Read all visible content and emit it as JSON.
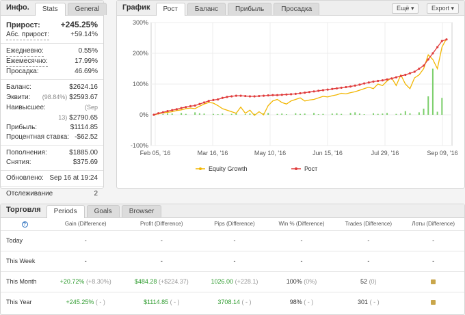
{
  "info": {
    "title": "Инфо.",
    "tabs": [
      "Stats",
      "General"
    ],
    "gain_label": "Прирост:",
    "gain_value": "+245.25%",
    "abs_gain_label": "Абс. прирост:",
    "abs_gain_value": "+59.14%",
    "daily_label": "Ежедневно:",
    "daily_value": "0.55%",
    "monthly_label": "Ежемесячно:",
    "monthly_value": "17.99%",
    "drawdown_label": "Просадка:",
    "drawdown_value": "46.69%",
    "balance_label": "Баланс:",
    "balance_value": "$2624.16",
    "equity_label": "Эквити:",
    "equity_note": "(98.84%)",
    "equity_value": "$2593.67",
    "highest_label": "Наивысшее:",
    "highest_note": "(Sep 13)",
    "highest_value": "$2790.65",
    "profit_label": "Прибыль:",
    "profit_value": "$1114.85",
    "interest_label": "Процентная ставка:",
    "interest_value": "-$62.52",
    "deposits_label": "Пополнения:",
    "deposits_value": "$1885.00",
    "withdrawals_label": "Снятия:",
    "withdrawals_value": "$375.69",
    "updated_label": "Обновлено:",
    "updated_value": "Sep 16 at 19:24",
    "tracking_label": "Отслеживание",
    "tracking_value": "2"
  },
  "chart_panel": {
    "title": "График",
    "tabs": [
      "Рост",
      "Баланс",
      "Прибыль",
      "Просадка"
    ],
    "more_button": "Ещё",
    "export_button": "Export"
  },
  "chart_data": {
    "type": "line",
    "x_ticks": [
      "Feb 05, '16",
      "Mar 16, '16",
      "May 10, '16",
      "Jun 15, '16",
      "Jul 29, '16",
      "Sep 09, '16"
    ],
    "y_ticks": [
      "300%",
      "200%",
      "100%",
      "0%",
      "-100%"
    ],
    "ylim": [
      -100,
      300
    ],
    "legend": [
      "Equity Growth",
      "Рост"
    ],
    "series": [
      {
        "name": "Рост",
        "color": "#e03c3c",
        "values": [
          0,
          5,
          8,
          12,
          15,
          18,
          22,
          25,
          28,
          30,
          35,
          40,
          45,
          48,
          50,
          55,
          58,
          60,
          62,
          62,
          61,
          60,
          60,
          61,
          62,
          63,
          64,
          64,
          65,
          66,
          67,
          68,
          70,
          72,
          74,
          76,
          78,
          80,
          82,
          84,
          86,
          88,
          90,
          92,
          95,
          98,
          102,
          105,
          108,
          110,
          112,
          115,
          118,
          122,
          126,
          130,
          135,
          140,
          150,
          160,
          180,
          200,
          220,
          240,
          245
        ]
      },
      {
        "name": "Equity Growth",
        "color": "#f2b600",
        "values": [
          0,
          3,
          6,
          8,
          10,
          14,
          16,
          20,
          22,
          20,
          28,
          35,
          40,
          38,
          30,
          20,
          15,
          10,
          5,
          25,
          5,
          15,
          -2,
          10,
          0,
          30,
          45,
          50,
          40,
          35,
          45,
          50,
          55,
          45,
          48,
          50,
          55,
          60,
          58,
          62,
          65,
          70,
          68,
          72,
          75,
          80,
          85,
          90,
          85,
          100,
          95,
          110,
          120,
          95,
          130,
          100,
          85,
          120,
          130,
          150,
          195,
          180,
          150,
          220,
          248
        ]
      }
    ],
    "bars": [
      3,
      0,
      2,
      5,
      4,
      0,
      6,
      3,
      0,
      8,
      5,
      4,
      0,
      3,
      2,
      4,
      0,
      3,
      5,
      0,
      2,
      4,
      3,
      0,
      5,
      6,
      0,
      3,
      4,
      2,
      0,
      5,
      3,
      4,
      0,
      6,
      2,
      3,
      0,
      4,
      5,
      3,
      0,
      6,
      8,
      4,
      2,
      0,
      5,
      3,
      4,
      6,
      0,
      3,
      4,
      12,
      5,
      0,
      8,
      20,
      60,
      150,
      10,
      55,
      0
    ]
  },
  "trading": {
    "title": "Торговля",
    "tabs": [
      "Periods",
      "Goals",
      "Browser"
    ],
    "columns": [
      "Gain (Difference)",
      "Profit (Difference)",
      "Pips (Difference)",
      "Win % (Difference)",
      "Trades (Difference)",
      "Лоты (Difference)"
    ],
    "rows": [
      {
        "period": "Today",
        "gain": "-",
        "gain_diff": "",
        "profit": "-",
        "profit_diff": "",
        "pips": "-",
        "pips_diff": "",
        "win": "-",
        "win_diff": "",
        "trades": "-",
        "trades_diff": "",
        "lots": "-"
      },
      {
        "period": "This Week",
        "gain": "-",
        "gain_diff": "",
        "profit": "-",
        "profit_diff": "",
        "pips": "-",
        "pips_diff": "",
        "win": "-",
        "win_diff": "",
        "trades": "-",
        "trades_diff": "",
        "lots": "-"
      },
      {
        "period": "This Month",
        "gain": "+20.72%",
        "gain_diff": "(+8.30%)",
        "profit": "$484.28",
        "profit_diff": "(+$224.37)",
        "pips": "1026.00",
        "pips_diff": "(+228.1)",
        "win": "100%",
        "win_diff": "(0%)",
        "trades": "52",
        "trades_diff": "(0)",
        "lots": "lock"
      },
      {
        "period": "This Year",
        "gain": "+245.25%",
        "gain_diff": "( - )",
        "profit": "$1114.85",
        "profit_diff": "( - )",
        "pips": "3708.14",
        "pips_diff": "( - )",
        "win": "98%",
        "win_diff": "( - )",
        "trades": "301",
        "trades_diff": "( - )",
        "lots": "lock"
      }
    ]
  }
}
